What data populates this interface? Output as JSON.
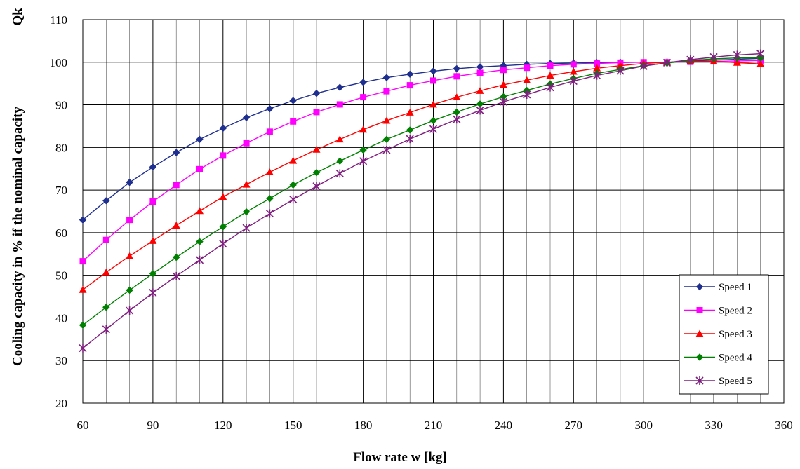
{
  "chart_data": {
    "type": "line",
    "title": "",
    "xlabel": "Flow rate w [kg]",
    "ylabel": "Cooling capacity in % if the nominal capacity",
    "ylabel_symbol": "Qk",
    "xlim": [
      60,
      360
    ],
    "ylim": [
      20,
      110
    ],
    "xticks": [
      60,
      90,
      120,
      150,
      180,
      210,
      240,
      270,
      300,
      330,
      360
    ],
    "yticks": [
      20,
      30,
      40,
      50,
      60,
      70,
      80,
      90,
      100,
      110
    ],
    "grid": true,
    "legend_position": "bottom-right",
    "x": [
      60,
      70,
      80,
      90,
      100,
      110,
      120,
      130,
      140,
      150,
      160,
      170,
      180,
      190,
      200,
      210,
      220,
      230,
      240,
      250,
      260,
      270,
      280,
      290,
      300,
      310,
      320,
      330,
      340,
      350
    ],
    "series": [
      {
        "name": "Speed 1",
        "color": "#1f2f8f",
        "marker": "diamond",
        "values": [
          63,
          67.5,
          71.8,
          75.4,
          78.8,
          81.9,
          84.5,
          87,
          89.1,
          91,
          92.7,
          94.1,
          95.3,
          96.4,
          97.2,
          97.9,
          98.5,
          98.9,
          99.2,
          99.5,
          99.7,
          99.8,
          99.9,
          100,
          100,
          100,
          100.3,
          100.5,
          100.7,
          100.9
        ]
      },
      {
        "name": "Speed 2",
        "color": "#ff00ff",
        "marker": "square",
        "values": [
          53.3,
          58.3,
          63,
          67.3,
          71.2,
          74.9,
          78.1,
          81,
          83.7,
          86.1,
          88.3,
          90.1,
          91.8,
          93.2,
          94.6,
          95.7,
          96.7,
          97.5,
          98.2,
          98.7,
          99.2,
          99.5,
          99.7,
          99.9,
          100,
          100,
          100.1,
          100.2,
          100.3,
          100.4
        ]
      },
      {
        "name": "Speed 3",
        "color": "#ff0000",
        "marker": "triangle",
        "values": [
          46.6,
          50.7,
          54.5,
          58.1,
          61.7,
          65.1,
          68.4,
          71.3,
          74.2,
          76.9,
          79.5,
          81.9,
          84.2,
          86.3,
          88.2,
          90.1,
          91.8,
          93.3,
          94.7,
          95.8,
          96.9,
          97.8,
          98.6,
          99.2,
          99.7,
          100,
          100.2,
          100.2,
          99.9,
          99.6
        ]
      },
      {
        "name": "Speed 4",
        "color": "#008000",
        "marker": "diamond",
        "values": [
          38.3,
          42.5,
          46.5,
          50.4,
          54.2,
          57.9,
          61.4,
          64.9,
          68,
          71.2,
          74.1,
          76.8,
          79.4,
          81.9,
          84.1,
          86.3,
          88.3,
          90.2,
          91.9,
          93.4,
          94.9,
          96.2,
          97.4,
          98.3,
          99.2,
          99.8,
          100.4,
          100.8,
          101,
          101
        ]
      },
      {
        "name": "Speed 5",
        "color": "#7f1f7f",
        "marker": "star",
        "values": [
          32.9,
          37.3,
          41.7,
          45.9,
          49.8,
          53.6,
          57.4,
          61.1,
          64.5,
          67.8,
          70.9,
          73.9,
          76.8,
          79.4,
          82,
          84.3,
          86.6,
          88.7,
          90.7,
          92.4,
          94.1,
          95.6,
          96.9,
          98,
          99.1,
          99.9,
          100.6,
          101.2,
          101.7,
          102
        ]
      }
    ]
  }
}
